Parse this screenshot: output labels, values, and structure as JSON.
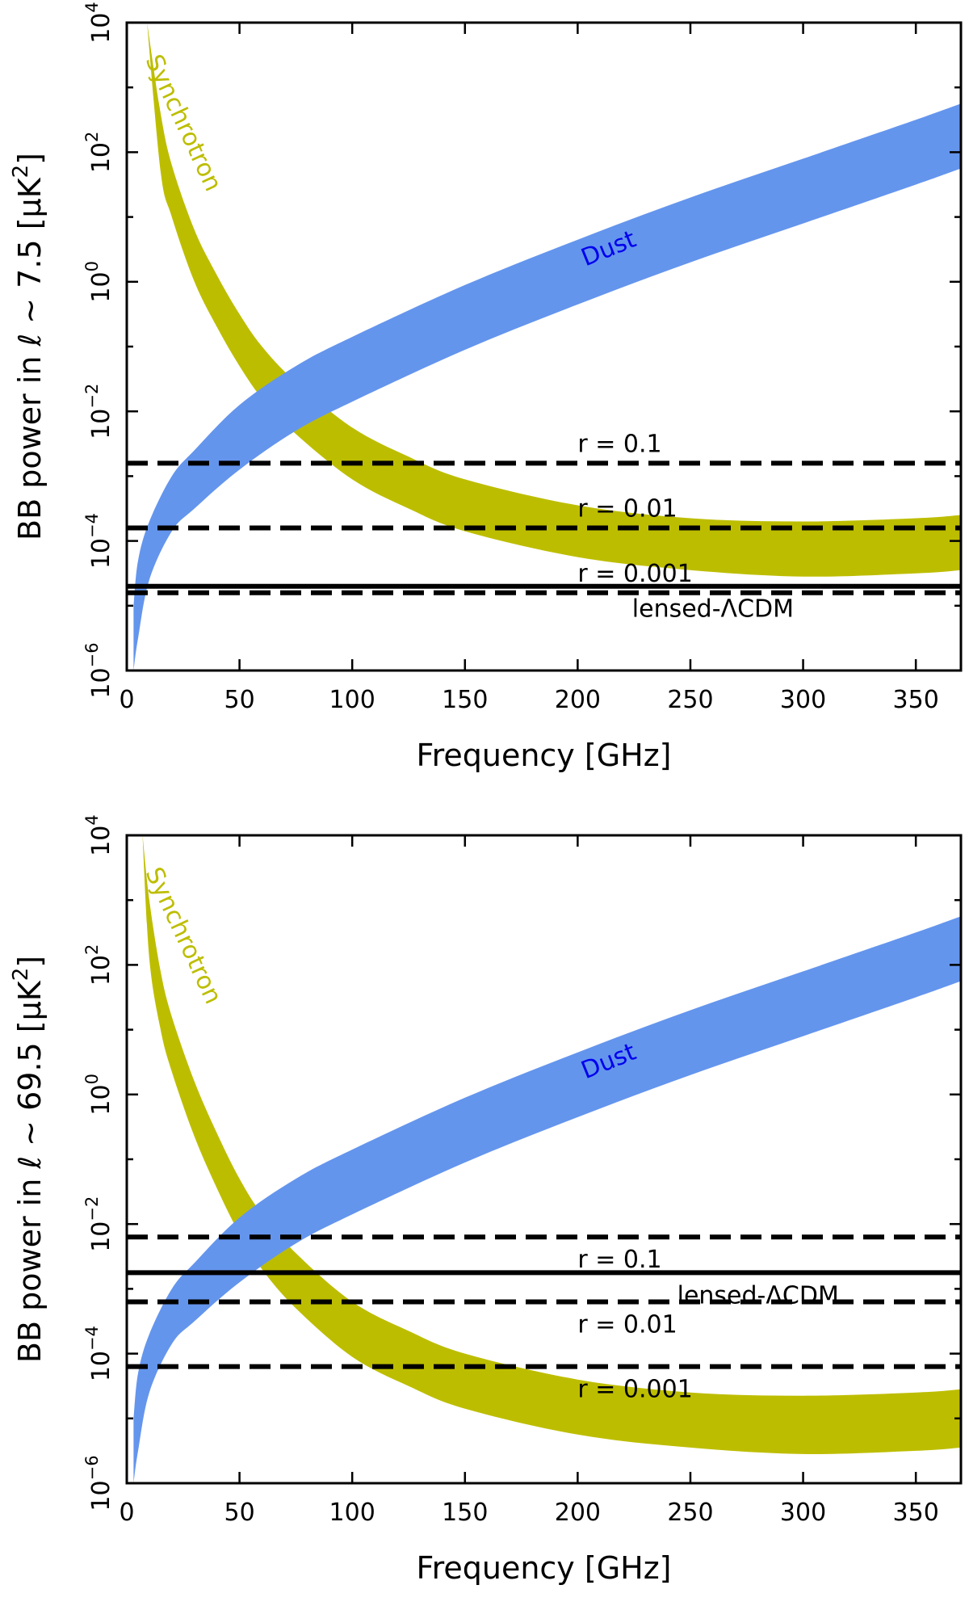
{
  "chart_data": [
    {
      "type": "area",
      "xlabel": "Frequency [GHz]",
      "ylabel_prefix": "BB power in ℓ ~ 7.5 [μK",
      "ylabel_sup": "2",
      "ylabel_suffix": "]",
      "xlim": [
        0,
        370
      ],
      "ylim_log10": [
        -6,
        4
      ],
      "x_ticks": [
        0,
        50,
        100,
        150,
        200,
        250,
        300,
        350
      ],
      "y_ticks": [
        {
          "base": "10",
          "exp": "4",
          "v": 4
        },
        {
          "base": "10",
          "exp": "2",
          "v": 2
        },
        {
          "base": "10",
          "exp": "0",
          "v": 0
        },
        {
          "base": "10",
          "exp": "−2",
          "v": -2
        },
        {
          "base": "10",
          "exp": "−4",
          "v": -4
        },
        {
          "base": "10",
          "exp": "−6",
          "v": -6
        }
      ],
      "bands": [
        {
          "name": "Synchrotron",
          "label": "Synchrotron",
          "color": "#bdbd00",
          "text_color": "#bdbd00",
          "x": [
            9,
            15,
            20,
            30,
            40,
            50,
            60,
            75,
            100,
            125,
            150,
            200,
            250,
            300,
            350,
            370
          ],
          "upper": [
            4,
            2.6,
            1.8,
            0.8,
            0.1,
            -0.5,
            -1.0,
            -1.55,
            -2.25,
            -2.7,
            -3.05,
            -3.45,
            -3.65,
            -3.7,
            -3.65,
            -3.6
          ],
          "lower": [
            4,
            1.7,
            1.0,
            0.0,
            -0.7,
            -1.3,
            -1.8,
            -2.35,
            -3.05,
            -3.5,
            -3.85,
            -4.25,
            -4.45,
            -4.55,
            -4.5,
            -4.45
          ]
        },
        {
          "name": "Dust",
          "label": "Dust",
          "color": "#6495ed",
          "text_color": "#0000ee",
          "x": [
            3,
            5,
            10,
            20,
            30,
            50,
            75,
            100,
            150,
            200,
            250,
            300,
            350,
            370
          ],
          "upper": [
            -5.0,
            -4.3,
            -3.7,
            -3.0,
            -2.6,
            -1.9,
            -1.3,
            -0.85,
            -0.05,
            0.65,
            1.3,
            1.9,
            2.5,
            2.75
          ],
          "lower": [
            -6.0,
            -5.5,
            -4.6,
            -3.85,
            -3.5,
            -2.9,
            -2.3,
            -1.85,
            -1.05,
            -0.35,
            0.3,
            0.9,
            1.5,
            1.75
          ]
        }
      ],
      "lines": [
        {
          "label": "r = 0.1",
          "value_log10": -2.8,
          "style": "dashed",
          "label_x": 200,
          "label_pos": "above"
        },
        {
          "label": "r = 0.01",
          "value_log10": -3.8,
          "style": "dashed",
          "label_x": 200,
          "label_pos": "above"
        },
        {
          "label": "r = 0.001",
          "value_log10": -4.8,
          "style": "dashed",
          "label_x": 200,
          "label_pos": "above"
        },
        {
          "label": "lensed-ΛCDM",
          "value_log10": -4.7,
          "style": "solid",
          "label_x": 260,
          "label_pos": "below"
        }
      ]
    },
    {
      "type": "area",
      "xlabel": "Frequency [GHz]",
      "ylabel_prefix": "BB power in ℓ ~ 69.5 [μK",
      "ylabel_sup": "2",
      "ylabel_suffix": "]",
      "xlim": [
        0,
        370
      ],
      "ylim_log10": [
        -6,
        4
      ],
      "x_ticks": [
        0,
        50,
        100,
        150,
        200,
        250,
        300,
        350
      ],
      "y_ticks": [
        {
          "base": "10",
          "exp": "4",
          "v": 4
        },
        {
          "base": "10",
          "exp": "2",
          "v": 2
        },
        {
          "base": "10",
          "exp": "0",
          "v": 0
        },
        {
          "base": "10",
          "exp": "−2",
          "v": -2
        },
        {
          "base": "10",
          "exp": "−4",
          "v": -4
        },
        {
          "base": "10",
          "exp": "−6",
          "v": -6
        }
      ],
      "bands": [
        {
          "name": "Synchrotron",
          "label": "Synchrotron",
          "color": "#bdbd00",
          "text_color": "#bdbd00",
          "x": [
            7,
            10,
            15,
            20,
            30,
            40,
            50,
            60,
            75,
            100,
            125,
            150,
            200,
            250,
            300,
            350,
            370
          ],
          "upper": [
            4,
            3.0,
            1.9,
            1.2,
            0.2,
            -0.6,
            -1.3,
            -1.85,
            -2.45,
            -3.2,
            -3.65,
            -4.0,
            -4.4,
            -4.6,
            -4.65,
            -4.6,
            -4.55
          ],
          "lower": [
            4,
            2.1,
            1.0,
            0.35,
            -0.65,
            -1.45,
            -2.15,
            -2.7,
            -3.3,
            -4.05,
            -4.5,
            -4.85,
            -5.25,
            -5.45,
            -5.55,
            -5.5,
            -5.45
          ]
        },
        {
          "name": "Dust",
          "label": "Dust",
          "color": "#6495ed",
          "text_color": "#0000ee",
          "x": [
            3,
            5,
            10,
            20,
            30,
            50,
            75,
            100,
            150,
            200,
            250,
            300,
            350,
            370
          ],
          "upper": [
            -5.0,
            -4.3,
            -3.7,
            -3.0,
            -2.6,
            -1.9,
            -1.3,
            -0.85,
            -0.05,
            0.65,
            1.3,
            1.9,
            2.5,
            2.75
          ],
          "lower": [
            -6.0,
            -5.5,
            -4.6,
            -3.85,
            -3.5,
            -2.9,
            -2.3,
            -1.85,
            -1.05,
            -0.35,
            0.3,
            0.9,
            1.5,
            1.75
          ]
        }
      ],
      "lines": [
        {
          "label": "r = 0.1",
          "value_log10": -2.2,
          "style": "dashed",
          "label_x": 200,
          "label_pos": "below"
        },
        {
          "label": "r = 0.01",
          "value_log10": -3.2,
          "style": "dashed",
          "label_x": 200,
          "label_pos": "below"
        },
        {
          "label": "r = 0.001",
          "value_log10": -4.2,
          "style": "dashed",
          "label_x": 200,
          "label_pos": "below"
        },
        {
          "label": "lensed-ΛCDM",
          "value_log10": -2.75,
          "style": "solid",
          "label_x": 280,
          "label_pos": "below"
        }
      ]
    }
  ]
}
